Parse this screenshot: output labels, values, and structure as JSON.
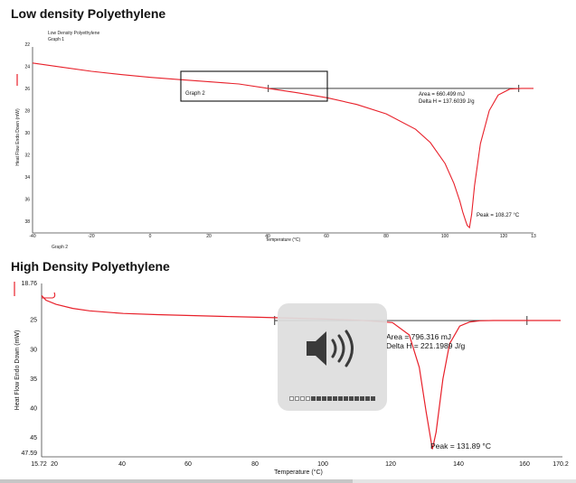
{
  "page": {
    "ldpe_heading": "Low density Polyethylene",
    "hdpe_heading": "High Density Polyethylene"
  },
  "chart_data": [
    {
      "type": "line",
      "title": "Low Density Polyethylene",
      "subtitle": "Graph 1",
      "xlabel": "Temperature (°C)",
      "ylabel": "Heat Flow Endo Down (mW)",
      "xlim": [
        -40,
        130
      ],
      "ylim": [
        22,
        39
      ],
      "y_inverted": true,
      "x_ticks": [
        "-40",
        "-20",
        "0",
        "20",
        "40",
        "60",
        "80",
        "100",
        "120",
        "13"
      ],
      "y_ticks": [
        "22",
        "24",
        "26",
        "28",
        "30",
        "32",
        "34",
        "36",
        "38"
      ],
      "series": [
        {
          "color": "#e8202a",
          "x": [
            -40,
            -30,
            -20,
            -10,
            0,
            10,
            20,
            30,
            40,
            50,
            60,
            70,
            80,
            90,
            95,
            100,
            103,
            105,
            106,
            107,
            107.5,
            108.27,
            109,
            110,
            112,
            115,
            118,
            122,
            126,
            130
          ],
          "y": [
            23.7,
            24.08,
            24.45,
            24.75,
            25.0,
            25.2,
            25.4,
            25.6,
            26.0,
            26.4,
            26.85,
            27.45,
            28.3,
            29.7,
            30.9,
            32.8,
            34.6,
            36.2,
            37.2,
            38.0,
            38.4,
            38.6,
            37.4,
            34.8,
            31.0,
            28.0,
            26.6,
            26.05,
            26.0,
            26.0
          ]
        }
      ],
      "baseline": {
        "x": [
          40,
          125
        ],
        "y": [
          26.0,
          26.0
        ]
      },
      "annotations": {
        "area": "Area = 660.499 mJ",
        "delta_h": "Delta H = 137.6039 J/g",
        "peak": "Peak = 108.27 °C",
        "graph_box_label": "Graph 2",
        "bottom_label": "Graph 2"
      }
    },
    {
      "type": "line",
      "title": "",
      "xlabel": "Temperature (°C)",
      "ylabel": "Heat Flow Endo Down (mW)",
      "xlim": [
        15.72,
        170
      ],
      "ylim": [
        18.76,
        47.59
      ],
      "y_inverted": true,
      "x_ticks": [
        "15.72",
        "20",
        "40",
        "60",
        "80",
        "100",
        "120",
        "140",
        "160",
        "170.2"
      ],
      "y_ticks": [
        "18.76",
        "25",
        "30",
        "35",
        "40",
        "45",
        "47.59"
      ],
      "series": [
        {
          "color": "#e8202a",
          "x": [
            15.72,
            17,
            20,
            25,
            30,
            40,
            50,
            60,
            70,
            80,
            90,
            100,
            110,
            120,
            125,
            128,
            130,
            131.89,
            133,
            135,
            137,
            140,
            143,
            146,
            150,
            160,
            170
          ],
          "y": [
            20.8,
            21.6,
            22.3,
            23.0,
            23.4,
            23.85,
            24.05,
            24.2,
            24.35,
            24.5,
            24.65,
            24.8,
            25.0,
            25.4,
            27.5,
            33.0,
            40.5,
            46.9,
            44.0,
            35.0,
            29.0,
            26.0,
            25.3,
            25.1,
            25.05,
            25.05,
            25.05
          ]
        }
      ],
      "baseline": {
        "x": [
          85,
          160
        ],
        "y": [
          25.05,
          25.05
        ]
      },
      "annotations": {
        "area": "Area = 796.316 mJ",
        "delta_h": "Delta H = 221.1989 J/g",
        "peak": "Peak = 131.89 °C"
      }
    }
  ],
  "overlay": {
    "icon": "speaker-volume-icon",
    "volume_level": 0.24
  }
}
